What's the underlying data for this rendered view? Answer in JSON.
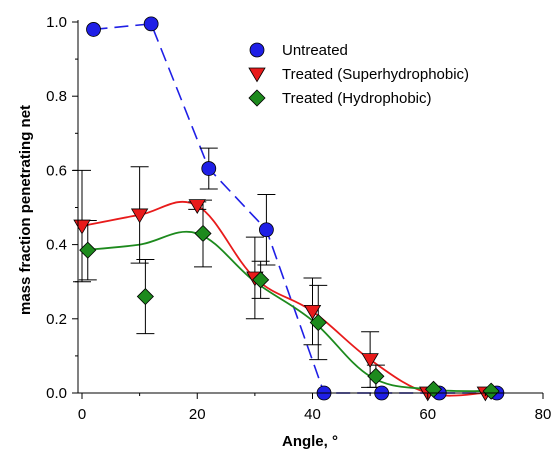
{
  "chart_data": {
    "type": "scatter",
    "xlabel": "Angle, °",
    "ylabel": "mass fraction penetrating net",
    "xlim": [
      0,
      80
    ],
    "ylim": [
      0.0,
      1.0
    ],
    "x_ticks": [
      "0",
      "20",
      "40",
      "60",
      "80"
    ],
    "y_ticks": [
      "0.0",
      "0.2",
      "0.4",
      "0.6",
      "0.8",
      "1.0"
    ],
    "legend_position": "top-right",
    "series": [
      {
        "name": "Untreated",
        "marker": "circle",
        "color": "#1f1fe6",
        "line_style": "dashed",
        "points": [
          {
            "x": 2,
            "y": 0.98
          },
          {
            "x": 12,
            "y": 0.995
          },
          {
            "x": 22,
            "y": 0.605,
            "err": 0.055
          },
          {
            "x": 32,
            "y": 0.44,
            "err": 0.095
          },
          {
            "x": 42,
            "y": 0.0
          },
          {
            "x": 52,
            "y": 0.0
          },
          {
            "x": 62,
            "y": 0.0
          },
          {
            "x": 72,
            "y": 0.0
          }
        ]
      },
      {
        "name": "Treated (Superhydrophobic)",
        "marker": "triangle-down",
        "color": "#e81b1b",
        "line_style": "smooth",
        "points": [
          {
            "x": 0,
            "y": 0.45,
            "err": 0.15
          },
          {
            "x": 10,
            "y": 0.48,
            "err": 0.13
          },
          {
            "x": 20,
            "y": 0.505,
            "err": 0.01
          },
          {
            "x": 30,
            "y": 0.31,
            "err": 0.11
          },
          {
            "x": 40,
            "y": 0.22,
            "err": 0.09
          },
          {
            "x": 50,
            "y": 0.09,
            "err": 0.075
          },
          {
            "x": 60,
            "y": 0.0
          },
          {
            "x": 70,
            "y": 0.0
          }
        ]
      },
      {
        "name": "Treated (Hydrophobic)",
        "marker": "diamond",
        "color": "#1d8a1d",
        "line_style": "smooth",
        "points": [
          {
            "x": 1,
            "y": 0.385,
            "err": 0.08
          },
          {
            "x": 11,
            "y": 0.26,
            "err": 0.1
          },
          {
            "x": 21,
            "y": 0.43,
            "err": 0.09
          },
          {
            "x": 31,
            "y": 0.305,
            "err": 0.05
          },
          {
            "x": 41,
            "y": 0.19,
            "err": 0.1
          },
          {
            "x": 51,
            "y": 0.045,
            "err": 0.03
          },
          {
            "x": 61,
            "y": 0.01
          },
          {
            "x": 71,
            "y": 0.005
          }
        ],
        "fit_curve": [
          {
            "x": 0,
            "y": 0.385
          },
          {
            "x": 10,
            "y": 0.4
          },
          {
            "x": 20,
            "y": 0.43
          },
          {
            "x": 30,
            "y": 0.3
          },
          {
            "x": 40,
            "y": 0.195
          },
          {
            "x": 50,
            "y": 0.045
          },
          {
            "x": 60,
            "y": 0.01
          },
          {
            "x": 70,
            "y": 0.005
          }
        ]
      }
    ]
  }
}
